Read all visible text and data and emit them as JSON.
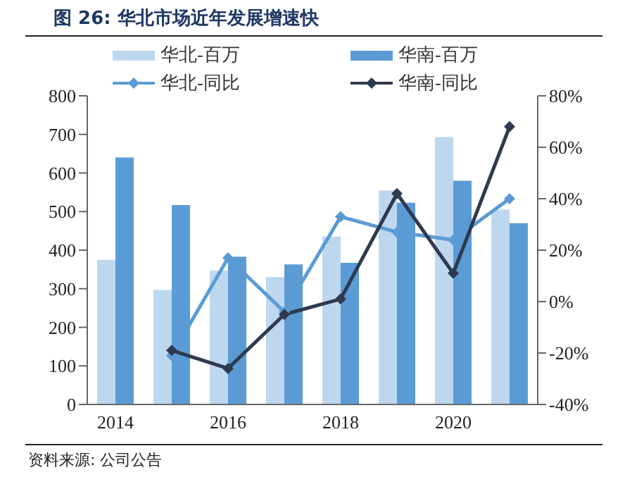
{
  "chart_data": {
    "type": "bar",
    "title": "图 26: 华北市场近年发展增速快",
    "categories": [
      "2014",
      null,
      "2016",
      null,
      "2018",
      null,
      "2020",
      null
    ],
    "series": [
      {
        "name": "华北-百万",
        "color": "#bdd7ee",
        "values": [
          375,
          297,
          347,
          330,
          435,
          555,
          693,
          505
        ]
      },
      {
        "name": "华南-百万",
        "color": "#5b9bd5",
        "values": [
          640,
          517,
          383,
          363,
          367,
          523,
          580,
          470
        ]
      },
      {
        "name": "华北-同比",
        "type": "line",
        "axis": "y2",
        "color": "#5b9bd5",
        "values": [
          null,
          -21,
          17,
          -4,
          33,
          27,
          24,
          40
        ]
      },
      {
        "name": "华南-同比",
        "type": "line",
        "axis": "y2",
        "color": "#2e3a4f",
        "values": [
          null,
          -19,
          -26,
          -5,
          1,
          42,
          11,
          68
        ]
      }
    ],
    "ylim": [
      0,
      800
    ],
    "yticks": [
      0,
      100,
      200,
      300,
      400,
      500,
      600,
      700,
      800
    ],
    "y2lim": [
      -40,
      80
    ],
    "y2ticks": [
      {
        "value": -40,
        "label": "-40%"
      },
      {
        "value": -20,
        "label": "-20%"
      },
      {
        "value": 0,
        "label": "0%"
      },
      {
        "value": 20,
        "label": "20%"
      },
      {
        "value": 40,
        "label": "40%"
      },
      {
        "value": 60,
        "label": "60%"
      },
      {
        "value": 80,
        "label": "80%"
      }
    ],
    "marker": "diamond",
    "legend": "top",
    "annotations": [
      "资料来源: 公司公告"
    ]
  }
}
